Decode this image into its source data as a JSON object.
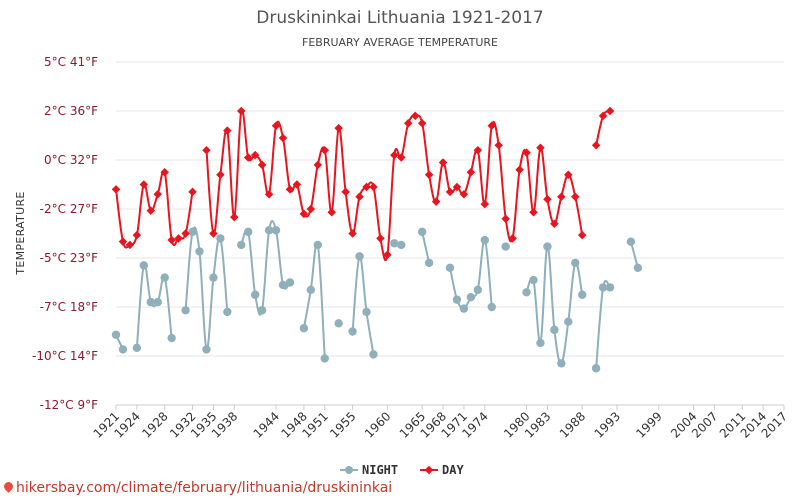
{
  "chart_data": {
    "type": "line",
    "title": "Druskininkai Lithuania 1921-2017",
    "subtitle": "FEBRUARY AVERAGE TEMPERATURE",
    "ylabel": "TEMPERATURE",
    "ylim": [
      -12,
      5
    ],
    "yticks": [
      {
        "value": 5,
        "label": "5°C 41°F"
      },
      {
        "value": 2,
        "label": "2°C 36°F"
      },
      {
        "value": 0,
        "label": "0°C 32°F"
      },
      {
        "value": -2,
        "label": "-2°C 27°F"
      },
      {
        "value": -5,
        "label": "-5°C 23°F"
      },
      {
        "value": -7,
        "label": "-7°C 18°F"
      },
      {
        "value": -10,
        "label": "-10°C 14°F"
      },
      {
        "value": -12,
        "label": "-12°C 9°F"
      }
    ],
    "xlim": [
      1921,
      2017
    ],
    "xticks": [
      1921,
      1924,
      1928,
      1932,
      1935,
      1938,
      1944,
      1948,
      1951,
      1955,
      1960,
      1965,
      1968,
      1971,
      1974,
      1980,
      1983,
      1988,
      1993,
      1999,
      2004,
      2007,
      2011,
      2014,
      2017
    ],
    "grid": true,
    "legend_position": "bottom-center",
    "series": [
      {
        "name": "NIGHT",
        "color": "#8fafba",
        "points": [
          [
            1921,
            -8.7
          ],
          [
            1922,
            -9.6
          ],
          [
            1924,
            -9.5
          ],
          [
            1925,
            -5.3
          ],
          [
            1926,
            -6.8
          ],
          [
            1927,
            -6.8
          ],
          [
            1928,
            -5.8
          ],
          [
            1929,
            -8.9
          ],
          [
            1931,
            -7.2
          ],
          [
            1932,
            -3.4
          ],
          [
            1933,
            -4.6
          ],
          [
            1934,
            -9.6
          ],
          [
            1935,
            -5.8
          ],
          [
            1936,
            -3.8
          ],
          [
            1937,
            -7.3
          ],
          [
            1939,
            -4.2
          ],
          [
            1940,
            -3.4
          ],
          [
            1941,
            -6.5
          ],
          [
            1942,
            -7.2
          ],
          [
            1943,
            -3.3
          ],
          [
            1944,
            -3.3
          ],
          [
            1945,
            -6.1
          ],
          [
            1946,
            -6.0
          ],
          [
            1948,
            -8.3
          ],
          [
            1949,
            -6.3
          ],
          [
            1950,
            -4.2
          ],
          [
            1951,
            -10.1
          ],
          [
            1953,
            -8.0
          ],
          [
            1955,
            -8.5
          ],
          [
            1956,
            -4.9
          ],
          [
            1957,
            -7.3
          ],
          [
            1958,
            -9.9
          ],
          [
            1961,
            -4.1
          ],
          [
            1962,
            -4.2
          ],
          [
            1965,
            -3.4
          ],
          [
            1966,
            -5.2
          ],
          [
            1969,
            -5.4
          ],
          [
            1970,
            -6.7
          ],
          [
            1971,
            -7.1
          ],
          [
            1972,
            -6.6
          ],
          [
            1973,
            -6.3
          ],
          [
            1974,
            -3.9
          ],
          [
            1975,
            -7.0
          ],
          [
            1977,
            -4.3
          ],
          [
            1980,
            -6.4
          ],
          [
            1981,
            -5.9
          ],
          [
            1982,
            -9.2
          ],
          [
            1983,
            -4.3
          ],
          [
            1984,
            -8.4
          ],
          [
            1985,
            -10.3
          ],
          [
            1986,
            -7.9
          ],
          [
            1987,
            -5.2
          ],
          [
            1988,
            -6.5
          ],
          [
            1990,
            -10.5
          ],
          [
            1991,
            -6.2
          ],
          [
            1992,
            -6.2
          ],
          [
            1995,
            -4.0
          ],
          [
            1996,
            -5.4
          ]
        ]
      },
      {
        "name": "DAY",
        "color": "#e8141e",
        "points": [
          [
            1921,
            -1.2
          ],
          [
            1922,
            -4.0
          ],
          [
            1923,
            -4.2
          ],
          [
            1924,
            -3.6
          ],
          [
            1925,
            -1.0
          ],
          [
            1926,
            -2.1
          ],
          [
            1927,
            -1.4
          ],
          [
            1928,
            -0.5
          ],
          [
            1929,
            -3.9
          ],
          [
            1930,
            -3.8
          ],
          [
            1931,
            -3.5
          ],
          [
            1932,
            -1.3
          ],
          [
            1934,
            0.4
          ],
          [
            1935,
            -3.5
          ],
          [
            1936,
            -0.6
          ],
          [
            1937,
            1.2
          ],
          [
            1938,
            -2.5
          ],
          [
            1939,
            2.0
          ],
          [
            1940,
            0.1
          ],
          [
            1941,
            0.2
          ],
          [
            1942,
            -0.2
          ],
          [
            1943,
            -1.4
          ],
          [
            1944,
            1.4
          ],
          [
            1945,
            0.9
          ],
          [
            1946,
            -1.2
          ],
          [
            1947,
            -1.0
          ],
          [
            1948,
            -2.3
          ],
          [
            1949,
            -2.0
          ],
          [
            1950,
            -0.2
          ],
          [
            1951,
            0.4
          ],
          [
            1952,
            -2.2
          ],
          [
            1953,
            1.3
          ],
          [
            1954,
            -1.3
          ],
          [
            1955,
            -3.5
          ],
          [
            1956,
            -1.5
          ],
          [
            1957,
            -1.1
          ],
          [
            1958,
            -1.1
          ],
          [
            1959,
            -3.8
          ],
          [
            1960,
            -4.8
          ],
          [
            1961,
            0.2
          ],
          [
            1962,
            0.1
          ],
          [
            1963,
            1.5
          ],
          [
            1964,
            1.8
          ],
          [
            1965,
            1.5
          ],
          [
            1966,
            -0.6
          ],
          [
            1967,
            -1.7
          ],
          [
            1968,
            -0.1
          ],
          [
            1969,
            -1.3
          ],
          [
            1970,
            -1.1
          ],
          [
            1971,
            -1.4
          ],
          [
            1972,
            -0.5
          ],
          [
            1973,
            0.4
          ],
          [
            1974,
            -1.8
          ],
          [
            1975,
            1.4
          ],
          [
            1976,
            0.6
          ],
          [
            1977,
            -2.6
          ],
          [
            1978,
            -3.8
          ],
          [
            1979,
            -0.4
          ],
          [
            1980,
            0.3
          ],
          [
            1981,
            -2.2
          ],
          [
            1982,
            0.5
          ],
          [
            1983,
            -1.6
          ],
          [
            1984,
            -2.9
          ],
          [
            1985,
            -1.5
          ],
          [
            1986,
            -0.6
          ],
          [
            1987,
            -1.5
          ],
          [
            1988,
            -3.6
          ],
          [
            1990,
            0.6
          ],
          [
            1991,
            1.8
          ],
          [
            1992,
            2.0
          ]
        ]
      }
    ]
  },
  "footer": {
    "text": "hikersbay.com/climate/february/lithuania/druskininkai"
  }
}
